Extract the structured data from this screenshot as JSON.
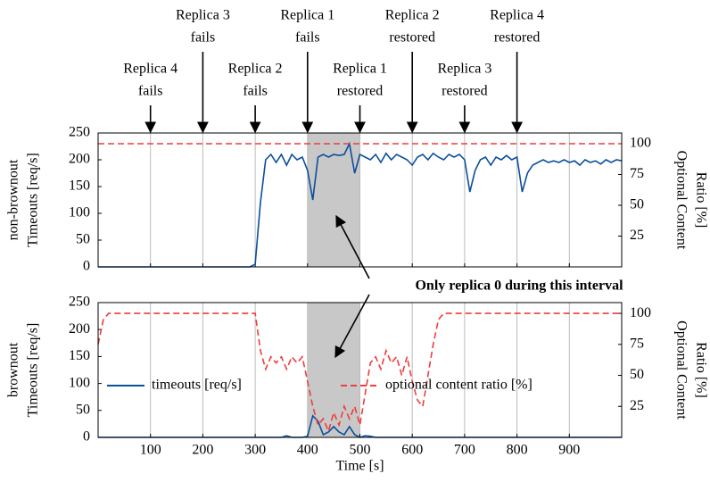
{
  "chart_data": [
    {
      "type": "line",
      "row_label": "non-brownout",
      "ylabel": "Timeouts [req/s]",
      "y2label": [
        "Optional Content",
        "Ratio [%]"
      ],
      "xlim": [
        0,
        1000
      ],
      "xticks": [
        100,
        200,
        300,
        400,
        500,
        600,
        700,
        800,
        900
      ],
      "xticklabels": false,
      "ylim": [
        0,
        250
      ],
      "yticks": [
        0,
        50,
        100,
        150,
        200,
        250
      ],
      "y2lim": [
        0,
        108.7
      ],
      "y2ticks": [
        25,
        50,
        75,
        100
      ],
      "shade": [
        400,
        500
      ],
      "grid": true,
      "legend": false,
      "annotations": [
        {
          "x": 100,
          "lines": [
            "Replica 4",
            "fails"
          ]
        },
        {
          "x": 200,
          "lines": [
            "Replica 3",
            "fails"
          ]
        },
        {
          "x": 300,
          "lines": [
            "Replica 2",
            "fails"
          ]
        },
        {
          "x": 400,
          "lines": [
            "Replica 1",
            "fails"
          ]
        },
        {
          "x": 500,
          "lines": [
            "Replica 1",
            "restored"
          ]
        },
        {
          "x": 600,
          "lines": [
            "Replica 2",
            "restored"
          ]
        },
        {
          "x": 700,
          "lines": [
            "Replica 3",
            "restored"
          ]
        },
        {
          "x": 800,
          "lines": [
            "Replica 4",
            "restored"
          ]
        }
      ],
      "x": [
        0,
        10,
        20,
        30,
        40,
        50,
        60,
        70,
        80,
        90,
        100,
        110,
        120,
        130,
        140,
        150,
        160,
        170,
        180,
        190,
        200,
        210,
        220,
        230,
        240,
        250,
        260,
        270,
        280,
        290,
        300,
        310,
        320,
        330,
        340,
        350,
        360,
        370,
        380,
        390,
        400,
        410,
        420,
        430,
        440,
        450,
        460,
        470,
        480,
        490,
        500,
        510,
        520,
        530,
        540,
        550,
        560,
        570,
        580,
        590,
        600,
        610,
        620,
        630,
        640,
        650,
        660,
        670,
        680,
        690,
        700,
        710,
        720,
        730,
        740,
        750,
        760,
        770,
        780,
        790,
        800,
        810,
        820,
        830,
        840,
        850,
        860,
        870,
        880,
        890,
        900,
        910,
        920,
        930,
        940,
        950,
        960,
        970,
        980,
        990,
        1000
      ],
      "series": [
        {
          "name": "timeouts [req/s]",
          "color": "#0b4f9c",
          "values": [
            0,
            0,
            0,
            0,
            0,
            0,
            0,
            0,
            0,
            0,
            0,
            0,
            0,
            0,
            0,
            0,
            0,
            0,
            0,
            0,
            0,
            0,
            0,
            0,
            0,
            0,
            0,
            0,
            0,
            0,
            5,
            120,
            200,
            210,
            195,
            210,
            190,
            210,
            200,
            205,
            180,
            125,
            205,
            210,
            205,
            210,
            208,
            210,
            230,
            175,
            210,
            205,
            200,
            210,
            195,
            212,
            200,
            210,
            205,
            200,
            190,
            205,
            210,
            200,
            212,
            205,
            200,
            210,
            205,
            210,
            200,
            140,
            180,
            200,
            205,
            190,
            205,
            200,
            208,
            200,
            205,
            140,
            175,
            190,
            195,
            200,
            195,
            198,
            195,
            200,
            195,
            198,
            190,
            200,
            195,
            198,
            192,
            200,
            195,
            200,
            198
          ]
        },
        {
          "name": "optional content ratio [%]",
          "color": "#f03c3c",
          "axis": "y2",
          "dashed": true,
          "x": [
            0,
            1000
          ],
          "values": [
            100,
            100
          ]
        }
      ]
    },
    {
      "type": "line",
      "row_label": "brownout",
      "ylabel": "Timeouts [req/s]",
      "y2label": [
        "Optional Content",
        "Ratio [%]"
      ],
      "xlabel": "Time [s]",
      "xlim": [
        0,
        1000
      ],
      "xticks": [
        100,
        200,
        300,
        400,
        500,
        600,
        700,
        800,
        900
      ],
      "xticklabels": true,
      "ylim": [
        0,
        250
      ],
      "yticks": [
        0,
        50,
        100,
        150,
        200,
        250
      ],
      "y2lim": [
        0,
        108.7
      ],
      "y2ticks": [
        25,
        50,
        75,
        100
      ],
      "shade": [
        400,
        500
      ],
      "grid": true,
      "legend": true,
      "x": [
        0,
        10,
        20,
        30,
        40,
        50,
        60,
        70,
        80,
        90,
        100,
        110,
        120,
        130,
        140,
        150,
        160,
        170,
        180,
        190,
        200,
        210,
        220,
        230,
        240,
        250,
        260,
        270,
        280,
        290,
        300,
        310,
        320,
        330,
        340,
        350,
        360,
        370,
        380,
        390,
        400,
        410,
        420,
        430,
        440,
        450,
        460,
        470,
        480,
        490,
        500,
        510,
        520,
        530,
        540,
        550,
        560,
        570,
        580,
        590,
        600,
        610,
        620,
        630,
        640,
        650,
        660,
        670,
        680,
        690,
        700,
        710,
        720,
        730,
        740,
        750,
        760,
        770,
        780,
        790,
        800,
        810,
        820,
        830,
        840,
        850,
        860,
        870,
        880,
        890,
        900,
        910,
        920,
        930,
        940,
        950,
        960,
        970,
        980,
        990,
        1000
      ],
      "series": [
        {
          "name": "timeouts [req/s]",
          "color": "#0b4f9c",
          "values": [
            0,
            0,
            0,
            0,
            0,
            0,
            0,
            0,
            0,
            0,
            0,
            0,
            0,
            0,
            0,
            0,
            0,
            0,
            0,
            0,
            0,
            0,
            0,
            0,
            0,
            0,
            0,
            0,
            0,
            0,
            0,
            0,
            0,
            0,
            0,
            0,
            3,
            0,
            0,
            0,
            2,
            40,
            30,
            5,
            10,
            20,
            10,
            5,
            20,
            5,
            0,
            3,
            2,
            0,
            0,
            0,
            0,
            0,
            0,
            0,
            0,
            0,
            0,
            0,
            0,
            0,
            0,
            0,
            0,
            0,
            0,
            0,
            0,
            0,
            0,
            0,
            0,
            0,
            0,
            0,
            0,
            0,
            0,
            0,
            0,
            0,
            0,
            0,
            0,
            0,
            0,
            0,
            0,
            0,
            0,
            0,
            0,
            0,
            0,
            0,
            0
          ]
        },
        {
          "name": "optional content ratio [%]",
          "color": "#f03c3c",
          "axis": "y2",
          "dashed": true,
          "values": [
            75,
            95,
            100,
            100,
            100,
            100,
            100,
            100,
            100,
            100,
            100,
            100,
            100,
            100,
            100,
            100,
            100,
            100,
            100,
            100,
            100,
            100,
            100,
            100,
            100,
            100,
            100,
            100,
            100,
            100,
            100,
            70,
            55,
            65,
            60,
            65,
            55,
            65,
            60,
            65,
            45,
            25,
            10,
            15,
            5,
            20,
            10,
            25,
            15,
            25,
            10,
            35,
            60,
            65,
            55,
            70,
            60,
            65,
            50,
            65,
            45,
            30,
            25,
            50,
            75,
            95,
            100,
            100,
            100,
            100,
            100,
            100,
            100,
            100,
            100,
            100,
            100,
            100,
            100,
            100,
            100,
            100,
            100,
            100,
            100,
            100,
            100,
            100,
            100,
            100,
            100,
            100,
            100,
            100,
            100,
            100,
            100,
            100,
            100,
            100,
            100
          ]
        }
      ]
    }
  ],
  "note": "Only replica 0 during this interval"
}
